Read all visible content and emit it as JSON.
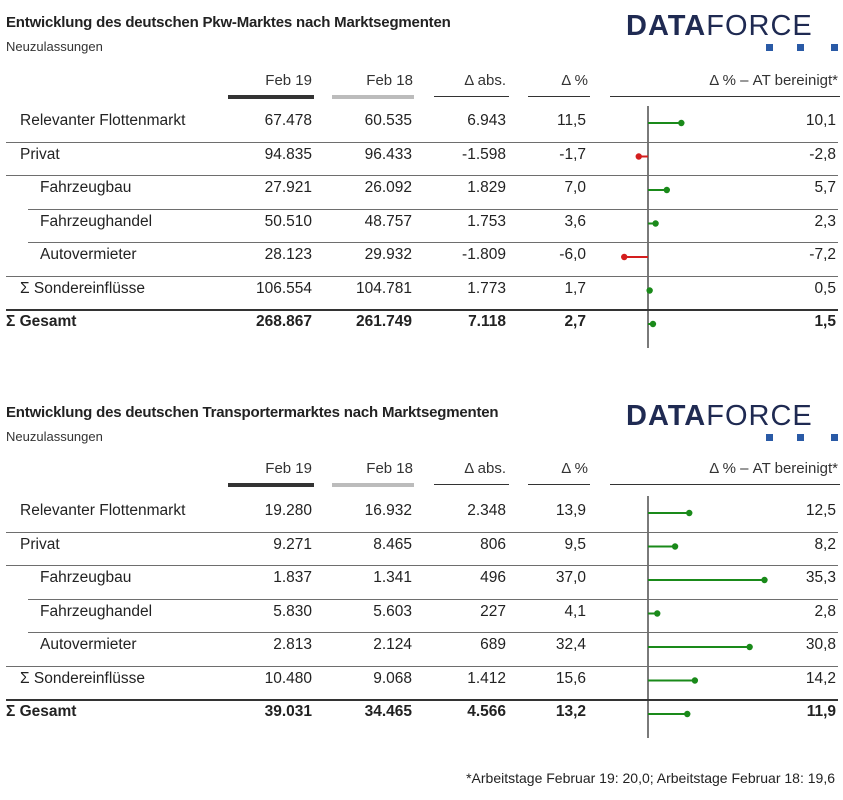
{
  "colors": {
    "positive": "#1a8a1a",
    "negative": "#d41e1e",
    "axis": "#7a7a7a",
    "logo_text": "#1f2a52",
    "logo_square": "#2a5aa6"
  },
  "logo": {
    "bold": "DATA",
    "light": "FORCE"
  },
  "columns": {
    "feb19": "Feb 19",
    "feb18": "Feb 18",
    "abs": "Δ abs.",
    "pct": "Δ %",
    "adj": "Δ % – AT bereinigt*"
  },
  "footnote": "*Arbeitstage Februar 19: 20,0; Arbeitstage Februar 18: 19,6",
  "sections": [
    {
      "title": "Entwicklung des deutschen Pkw-Marktes nach Marktsegmenten",
      "subtitle": "Neuzulassungen",
      "rows": [
        {
          "label": "Relevanter Flottenmarkt",
          "feb19": "67.478",
          "feb18": "60.535",
          "abs": "6.943",
          "pct": "11,5",
          "adj": "10,1",
          "indent": false,
          "bold": false
        },
        {
          "label": "Privat",
          "feb19": "94.835",
          "feb18": "96.433",
          "abs": "-1.598",
          "pct": "-1,7",
          "adj": "-2,8",
          "indent": false,
          "bold": false
        },
        {
          "label": "Fahrzeugbau",
          "feb19": "27.921",
          "feb18": "26.092",
          "abs": "1.829",
          "pct": "7,0",
          "adj": "5,7",
          "indent": true,
          "bold": false
        },
        {
          "label": "Fahrzeughandel",
          "feb19": "50.510",
          "feb18": "48.757",
          "abs": "1.753",
          "pct": "3,6",
          "adj": "2,3",
          "indent": true,
          "bold": false
        },
        {
          "label": "Autovermieter",
          "feb19": "28.123",
          "feb18": "29.932",
          "abs": "-1.809",
          "pct": "-6,0",
          "adj": "-7,2",
          "indent": true,
          "bold": false
        },
        {
          "label": "Σ Sondereinflüsse",
          "feb19": "106.554",
          "feb18": "104.781",
          "abs": "1.773",
          "pct": "1,7",
          "adj": "0,5",
          "indent": false,
          "bold": false
        },
        {
          "label": "Σ Gesamt",
          "feb19": "268.867",
          "feb18": "261.749",
          "abs": "7.118",
          "pct": "2,7",
          "adj": "1,5",
          "indent": false,
          "bold": true
        }
      ]
    },
    {
      "title": "Entwicklung des deutschen Transportermarktes nach Marktsegmenten",
      "subtitle": "Neuzulassungen",
      "rows": [
        {
          "label": "Relevanter Flottenmarkt",
          "feb19": "19.280",
          "feb18": "16.932",
          "abs": "2.348",
          "pct": "13,9",
          "adj": "12,5",
          "indent": false,
          "bold": false
        },
        {
          "label": "Privat",
          "feb19": "9.271",
          "feb18": "8.465",
          "abs": "806",
          "pct": "9,5",
          "adj": "8,2",
          "indent": false,
          "bold": false
        },
        {
          "label": "Fahrzeugbau",
          "feb19": "1.837",
          "feb18": "1.341",
          "abs": "496",
          "pct": "37,0",
          "adj": "35,3",
          "indent": true,
          "bold": false
        },
        {
          "label": "Fahrzeughandel",
          "feb19": "5.830",
          "feb18": "5.603",
          "abs": "227",
          "pct": "4,1",
          "adj": "2,8",
          "indent": true,
          "bold": false
        },
        {
          "label": "Autovermieter",
          "feb19": "2.813",
          "feb18": "2.124",
          "abs": "689",
          "pct": "32,4",
          "adj": "30,8",
          "indent": true,
          "bold": false
        },
        {
          "label": "Σ Sondereinflüsse",
          "feb19": "10.480",
          "feb18": "9.068",
          "abs": "1.412",
          "pct": "15,6",
          "adj": "14,2",
          "indent": false,
          "bold": false
        },
        {
          "label": "Σ Gesamt",
          "feb19": "39.031",
          "feb18": "34.465",
          "abs": "4.566",
          "pct": "13,2",
          "adj": "11,9",
          "indent": false,
          "bold": true
        }
      ]
    }
  ],
  "chart_data": [
    {
      "type": "bar",
      "orientation": "horizontal-lollipop",
      "title": "Entwicklung des deutschen Pkw-Marktes nach Marktsegmenten",
      "categories": [
        "Relevanter Flottenmarkt",
        "Privat",
        "Fahrzeugbau",
        "Fahrzeughandel",
        "Autovermieter",
        "Σ Sondereinflüsse",
        "Σ Gesamt"
      ],
      "series": [
        {
          "name": "Δ % – AT bereinigt*",
          "values": [
            10.1,
            -2.8,
            5.7,
            2.3,
            -7.2,
            0.5,
            1.5
          ]
        }
      ]
    },
    {
      "type": "bar",
      "orientation": "horizontal-lollipop",
      "title": "Entwicklung des deutschen Transportermarktes nach Marktsegmenten",
      "categories": [
        "Relevanter Flottenmarkt",
        "Privat",
        "Fahrzeugbau",
        "Fahrzeughandel",
        "Autovermieter",
        "Σ Sondereinflüsse",
        "Σ Gesamt"
      ],
      "series": [
        {
          "name": "Δ % – AT bereinigt*",
          "values": [
            12.5,
            8.2,
            35.3,
            2.8,
            30.8,
            14.2,
            11.9
          ]
        }
      ]
    }
  ]
}
